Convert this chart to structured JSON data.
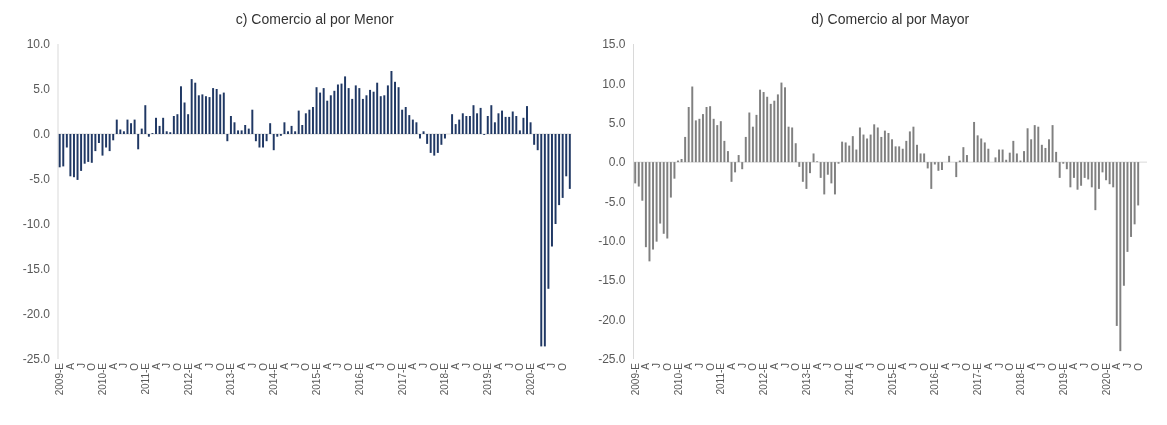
{
  "chart_data": [
    {
      "type": "bar",
      "title": "c) Comercio al por Menor",
      "color": "#203864",
      "categories": [
        "2009-E",
        null,
        null,
        "A",
        null,
        null,
        "J",
        null,
        null,
        "O",
        null,
        null,
        "2010-E",
        null,
        null,
        "A",
        null,
        null,
        "J",
        null,
        null,
        "O",
        null,
        null,
        "2011-E",
        null,
        null,
        "A",
        null,
        null,
        "J",
        null,
        null,
        "O",
        null,
        null,
        "2012-E",
        null,
        null,
        "A",
        null,
        null,
        "J",
        null,
        null,
        "O",
        null,
        null,
        "2013-E",
        null,
        null,
        "A",
        null,
        null,
        "J",
        null,
        null,
        "O",
        null,
        null,
        "2014-E",
        null,
        null,
        "A",
        null,
        null,
        "J",
        null,
        null,
        "O",
        null,
        null,
        "2015-E",
        null,
        null,
        "A",
        null,
        null,
        "J",
        null,
        null,
        "O",
        null,
        null,
        "2016-E",
        null,
        null,
        "A",
        null,
        null,
        "J",
        null,
        null,
        "O",
        null,
        null,
        "2017-E",
        null,
        null,
        "A",
        null,
        null,
        "J",
        null,
        null,
        "O",
        null,
        null,
        "2018-E",
        null,
        null,
        "A",
        null,
        null,
        "J",
        null,
        null,
        "O",
        null,
        null,
        "2019-E",
        null,
        null,
        "A",
        null,
        null,
        "J",
        null,
        null,
        "O",
        null,
        null,
        "2020-E",
        null,
        null,
        "A",
        null,
        null,
        "J",
        null,
        null,
        "O",
        null,
        null
      ],
      "values": [
        -3.7,
        -3.6,
        -1.5,
        -4.7,
        -4.8,
        -5.1,
        -4.1,
        -3.3,
        -3.1,
        -3.2,
        -1.9,
        -1.0,
        -2.4,
        -1.5,
        -1.9,
        -0.7,
        1.6,
        0.5,
        0.3,
        1.6,
        1.2,
        1.6,
        -1.7,
        0.6,
        3.2,
        -0.3,
        0.1,
        1.8,
        0.9,
        1.8,
        0.3,
        0.2,
        2.0,
        2.2,
        5.3,
        3.5,
        2.2,
        6.1,
        5.7,
        4.3,
        4.4,
        4.2,
        4.1,
        5.1,
        5.0,
        4.4,
        4.6,
        -0.8,
        2.0,
        1.3,
        0.4,
        0.4,
        1.0,
        0.6,
        2.7,
        -0.8,
        -1.5,
        -1.5,
        -0.8,
        1.2,
        -1.8,
        -0.3,
        -0.2,
        1.3,
        0.3,
        0.9,
        0.3,
        2.6,
        1.0,
        2.3,
        2.7,
        3.0,
        5.2,
        4.6,
        5.1,
        3.7,
        4.3,
        4.8,
        5.5,
        5.6,
        6.4,
        5.1,
        3.9,
        5.4,
        5.1,
        3.9,
        4.3,
        4.9,
        4.7,
        5.7,
        4.2,
        4.3,
        5.4,
        7.0,
        5.8,
        5.2,
        2.7,
        3.0,
        2.1,
        1.6,
        1.3,
        -0.5,
        0.3,
        -1.1,
        -2.1,
        -2.4,
        -2.1,
        -1.2,
        -0.5,
        0.0,
        2.2,
        1.1,
        1.6,
        2.3,
        2.0,
        2.0,
        3.2,
        2.3,
        2.9,
        -0.1,
        2.0,
        3.2,
        1.3,
        2.3,
        2.6,
        1.9,
        1.9,
        2.5,
        2.0,
        0.4,
        1.8,
        3.1,
        1.3,
        -1.2,
        -1.8,
        -23.6,
        -23.6,
        -17.2,
        -12.5,
        -10.0,
        -7.9,
        -7.1,
        -4.7,
        -6.1
      ],
      "ylim": [
        -25,
        10
      ],
      "yticks": [
        {
          "value": -25,
          "label": "-25.0"
        },
        {
          "value": -20,
          "label": "-20.0"
        },
        {
          "value": -15,
          "label": "-15.0"
        },
        {
          "value": -10,
          "label": "-10.0"
        },
        {
          "value": -5,
          "label": "-5.0"
        },
        {
          "value": 0,
          "label": "0.0"
        },
        {
          "value": 5,
          "label": "5.0"
        },
        {
          "value": 10,
          "label": "10.0"
        }
      ]
    },
    {
      "type": "bar",
      "title": "d) Comercio al por Mayor",
      "color": "#808080",
      "categories": [
        "2009-E",
        null,
        null,
        "A",
        null,
        null,
        "J",
        null,
        null,
        "O",
        null,
        null,
        "2010-E",
        null,
        null,
        "A",
        null,
        null,
        "J",
        null,
        null,
        "O",
        null,
        null,
        "2011-E",
        null,
        null,
        "A",
        null,
        null,
        "J",
        null,
        null,
        "O",
        null,
        null,
        "2012-E",
        null,
        null,
        "A",
        null,
        null,
        "J",
        null,
        null,
        "O",
        null,
        null,
        "2013-E",
        null,
        null,
        "A",
        null,
        null,
        "J",
        null,
        null,
        "O",
        null,
        null,
        "2014-E",
        null,
        null,
        "A",
        null,
        null,
        "J",
        null,
        null,
        "O",
        null,
        null,
        "2015-E",
        null,
        null,
        "A",
        null,
        null,
        "J",
        null,
        null,
        "O",
        null,
        null,
        "2016-E",
        null,
        null,
        "A",
        null,
        null,
        "J",
        null,
        null,
        "O",
        null,
        null,
        "2017-E",
        null,
        null,
        "A",
        null,
        null,
        "J",
        null,
        null,
        "O",
        null,
        null,
        "2018-E",
        null,
        null,
        "A",
        null,
        null,
        "J",
        null,
        null,
        "O",
        null,
        null,
        "2019-E",
        null,
        null,
        "A",
        null,
        null,
        "J",
        null,
        null,
        "O",
        null,
        null,
        "2020-E",
        null,
        null,
        "A",
        null,
        null,
        "J",
        null,
        null,
        "O",
        null,
        null
      ],
      "values": [
        -2.7,
        -3.1,
        -4.9,
        -10.8,
        -12.6,
        -11.1,
        -10.1,
        -7.8,
        -9.1,
        -9.7,
        -4.5,
        -2.1,
        0.2,
        0.4,
        3.2,
        7.0,
        9.6,
        5.3,
        5.5,
        6.1,
        7.0,
        7.1,
        5.5,
        4.7,
        5.2,
        2.7,
        1.4,
        -2.5,
        -1.3,
        0.9,
        -0.9,
        3.2,
        6.3,
        4.5,
        6.0,
        9.2,
        8.9,
        8.3,
        7.4,
        7.8,
        8.6,
        10.1,
        9.5,
        4.5,
        4.4,
        2.4,
        -0.6,
        -2.5,
        -3.4,
        -1.4,
        1.1,
        0.1,
        -2.0,
        -4.1,
        -1.6,
        -2.7,
        -4.1,
        -0.2,
        2.6,
        2.5,
        2.1,
        3.3,
        1.6,
        4.4,
        3.5,
        3.0,
        3.5,
        4.8,
        4.4,
        3.2,
        4.0,
        3.7,
        2.9,
        2.0,
        2.0,
        1.7,
        2.7,
        3.9,
        4.5,
        2.2,
        1.1,
        1.1,
        -0.8,
        -3.4,
        -0.3,
        -1.1,
        -1.0,
        0.0,
        0.8,
        0.0,
        -1.9,
        0.2,
        1.9,
        0.9,
        0.0,
        5.1,
        3.4,
        3.0,
        2.5,
        1.7,
        0.0,
        0.6,
        1.6,
        1.6,
        0.3,
        1.2,
        2.7,
        1.1,
        0.2,
        1.4,
        4.3,
        2.9,
        4.7,
        4.5,
        2.2,
        1.8,
        2.9,
        4.7,
        1.3,
        -2.0,
        -0.2,
        -0.9,
        -3.2,
        -2.0,
        -3.5,
        -3.0,
        -2.0,
        -2.2,
        -3.2,
        -6.1,
        -3.4,
        -1.3,
        -2.3,
        -2.8,
        -3.2,
        -20.8,
        -24.0,
        -15.7,
        -11.4,
        -9.5,
        -7.9,
        -5.5,
        null,
        null
      ],
      "ylim": [
        -25,
        15
      ],
      "yticks": [
        {
          "value": -25,
          "label": "-25.0"
        },
        {
          "value": -20,
          "label": "-20.0"
        },
        {
          "value": -15,
          "label": "-15.0"
        },
        {
          "value": -10,
          "label": "-10.0"
        },
        {
          "value": -5,
          "label": "-5.0"
        },
        {
          "value": 0,
          "label": "0.0"
        },
        {
          "value": 5,
          "label": "5.0"
        },
        {
          "value": 10,
          "label": "10.0"
        },
        {
          "value": 15,
          "label": "15.0"
        }
      ]
    }
  ]
}
